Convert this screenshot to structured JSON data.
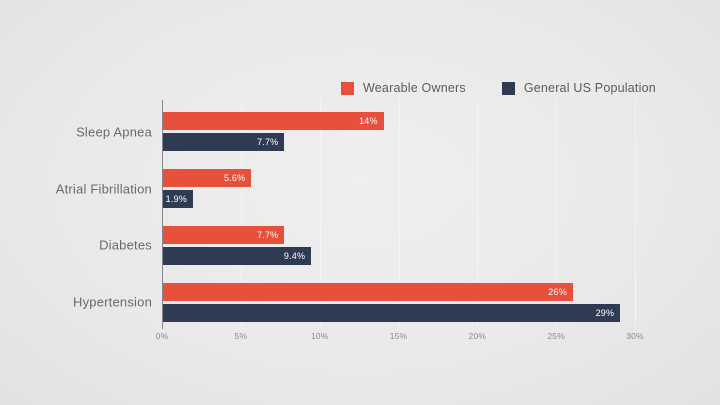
{
  "chart_data": {
    "type": "bar",
    "orientation": "horizontal",
    "title": "",
    "categories": [
      "Sleep Apnea",
      "Atrial Fibrillation",
      "Diabetes",
      "Hypertension"
    ],
    "series": [
      {
        "name": "Wearable Owners",
        "color": "#e7503b",
        "values": [
          14,
          5.6,
          7.7,
          26
        ],
        "value_labels": [
          "14%",
          "7.7%",
          "5.6%",
          "1.9%",
          "7.7%",
          "9.4%",
          "26%",
          "29%"
        ],
        "labels": [
          "14%",
          "5.6%",
          "7.7%",
          "26%"
        ]
      },
      {
        "name": "General US Population",
        "color": "#2f3b52",
        "values": [
          7.7,
          1.9,
          9.4,
          29
        ],
        "labels": [
          "7.7%",
          "1.9%",
          "9.4%",
          "29%"
        ]
      }
    ],
    "x_ticks": [
      "0%",
      "5%",
      "10%",
      "15%",
      "20%",
      "25%",
      "30%"
    ],
    "xlim": [
      0,
      30
    ],
    "grid": true,
    "legend_position": "top",
    "value_label_color": "#ffffff"
  },
  "colors": {
    "background": "#eaeaea",
    "axis_line": "#85858d",
    "gridline": "#f4f4f4",
    "category_text": "#6a6a6a",
    "tick_text": "#8c8c8c",
    "legend_text": "#5c5c5c"
  }
}
